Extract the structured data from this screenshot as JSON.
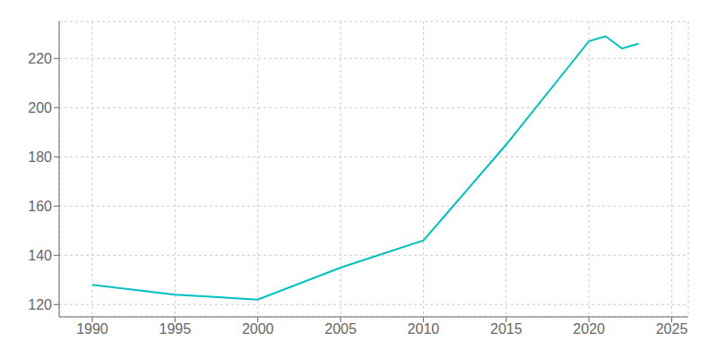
{
  "chart_data": {
    "type": "line",
    "x": [
      1990,
      1995,
      2000,
      2005,
      2010,
      2015,
      2020,
      2021,
      2022,
      2023
    ],
    "values": [
      128,
      124,
      122,
      135,
      146,
      185,
      227,
      229,
      224,
      226
    ],
    "color": "#00BFBF",
    "xlim": [
      1988,
      2026
    ],
    "ylim": [
      115,
      235
    ],
    "xticks": [
      1990,
      1995,
      2000,
      2005,
      2010,
      2015,
      2020,
      2025
    ],
    "yticks": [
      120,
      140,
      160,
      180,
      200,
      220
    ],
    "grid": true
  }
}
